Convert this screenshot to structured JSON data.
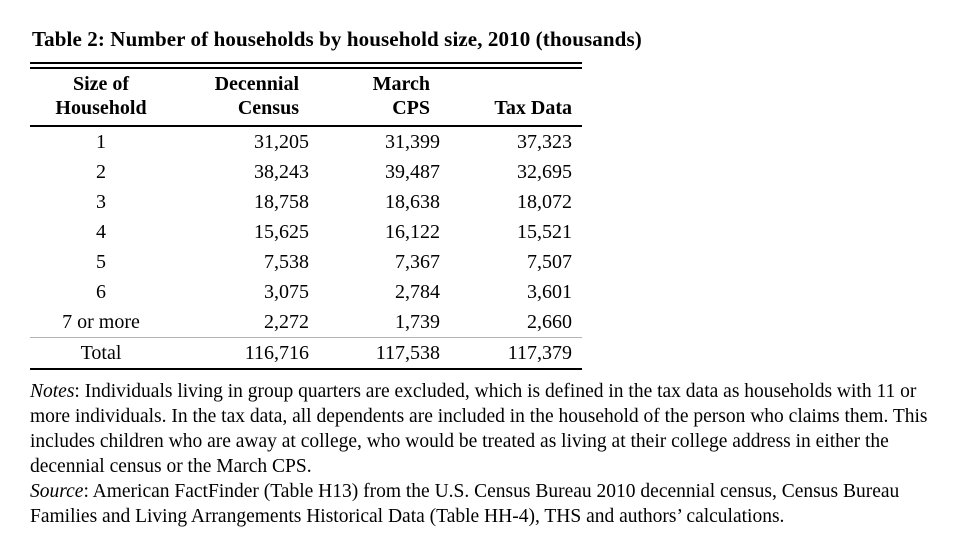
{
  "page": {
    "title": "Table 2: Number of households by household size, 2010 (thousands)"
  },
  "table": {
    "headers": [
      {
        "line1": "Size of",
        "line2": "Household"
      },
      {
        "line1": "Decennial",
        "line2": "Census"
      },
      {
        "line1": "March",
        "line2": "CPS"
      },
      {
        "line1": "",
        "line2": "Tax Data"
      }
    ],
    "rows": [
      {
        "size": "1",
        "decennial_census": "31,205",
        "march_cps": "31,399",
        "tax_data": "37,323"
      },
      {
        "size": "2",
        "decennial_census": "38,243",
        "march_cps": "39,487",
        "tax_data": "32,695"
      },
      {
        "size": "3",
        "decennial_census": "18,758",
        "march_cps": "18,638",
        "tax_data": "18,072"
      },
      {
        "size": "4",
        "decennial_census": "15,625",
        "march_cps": "16,122",
        "tax_data": "15,521"
      },
      {
        "size": "5",
        "decennial_census": "7,538",
        "march_cps": "7,367",
        "tax_data": "7,507"
      },
      {
        "size": "6",
        "decennial_census": "3,075",
        "march_cps": "2,784",
        "tax_data": "3,601"
      },
      {
        "size": "7 or more",
        "decennial_census": "2,272",
        "march_cps": "1,739",
        "tax_data": "2,660"
      }
    ],
    "total_row": {
      "size": "Total",
      "decennial_census": "116,716",
      "march_cps": "117,538",
      "tax_data": "117,379"
    }
  },
  "notes": {
    "label": "Notes",
    "text": ": Individuals living in group quarters are excluded, which is defined in the tax data as households with 11 or more individuals. In the tax data, all dependents are included in the household of the person who claims them. This includes children who are away at college, who would be treated as living at their college address in either the decennial census or the March CPS."
  },
  "source": {
    "label": "Source",
    "text": ": American FactFinder (Table H13) from the U.S. Census Bureau 2010 decennial census, Census Bureau Families and Living Arrangements Historical Data (Table HH-4), THS and authors’ calculations."
  }
}
